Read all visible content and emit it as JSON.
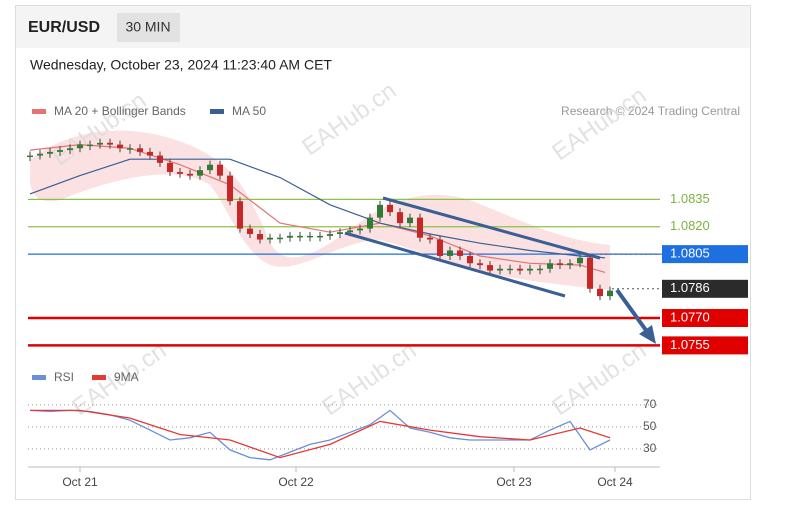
{
  "header": {
    "symbol": "EUR/USD",
    "interval": "30 MIN",
    "timestamp": "Wednesday, October 23, 2024 11:23:40 AM CET"
  },
  "watermark": "EAHub.cn",
  "chart_data": {
    "type": "candlestick",
    "credit": "Research © 2024 Trading Central",
    "xlim": [
      -0.2,
      63
    ],
    "xticks": [
      {
        "value": 5,
        "label": "Oct 21"
      },
      {
        "value": 26.6,
        "label": "Oct 22"
      },
      {
        "value": 48.4,
        "label": "Oct 23"
      },
      {
        "value": 58.5,
        "label": "Oct 24"
      }
    ],
    "ylim": [
      1.0747,
      1.0873
    ],
    "candles": {
      "up_color": "#2e7d32",
      "down_color": "#c62828",
      "x": [
        0,
        1,
        2,
        3,
        4,
        5,
        6,
        7,
        8,
        9,
        10,
        11,
        12,
        13,
        14,
        15,
        16,
        17,
        18,
        19,
        20,
        21,
        22,
        23,
        24,
        25,
        26,
        27,
        28,
        29,
        30,
        31,
        32,
        33,
        34,
        35,
        36,
        37,
        38,
        39,
        40,
        41,
        42,
        43,
        44,
        45,
        46,
        47,
        48,
        49,
        50,
        51,
        52,
        53,
        54,
        55,
        56,
        57,
        58
      ],
      "values": [
        1.0859,
        1.086,
        1.0861,
        1.0862,
        1.0863,
        1.0865,
        1.0865,
        1.0866,
        1.0865,
        1.0863,
        1.0863,
        1.0861,
        1.0859,
        1.0855,
        1.085,
        1.0849,
        1.0848,
        1.0851,
        1.0854,
        1.0848,
        1.0834,
        1.0819,
        1.0816,
        1.0813,
        1.0814,
        1.0814,
        1.0815,
        1.0815,
        1.0815,
        1.0815,
        1.0816,
        1.0817,
        1.0818,
        1.0819,
        1.0825,
        1.0832,
        1.0828,
        1.0822,
        1.0825,
        1.0814,
        1.0813,
        1.0804,
        1.0807,
        1.0804,
        1.08,
        1.0799,
        1.0796,
        1.0797,
        1.0797,
        1.0796,
        1.0797,
        1.0797,
        1.08,
        1.0799,
        1.08,
        1.0803,
        1.0786,
        1.0782,
        1.0785
      ]
    },
    "series": [
      {
        "name": "MA 20 + Bollinger Bands",
        "color": "#e57373",
        "x": [
          0,
          5,
          10,
          15,
          20,
          25,
          30,
          35,
          40,
          45,
          50,
          55,
          57.5
        ],
        "values": [
          1.0862,
          1.0865,
          1.0863,
          1.0854,
          1.0843,
          1.0822,
          1.0817,
          1.0822,
          1.0815,
          1.0804,
          1.08,
          1.0799,
          1.0795
        ]
      },
      {
        "name": "MA 50",
        "color": "#3a5f94",
        "x": [
          0,
          5,
          10,
          15,
          20,
          25,
          30,
          35,
          40,
          45,
          50,
          55,
          57.5
        ],
        "values": [
          1.0838,
          1.0848,
          1.0857,
          1.0857,
          1.0857,
          1.0847,
          1.0832,
          1.0822,
          1.0816,
          1.0811,
          1.0807,
          1.0804,
          1.0803
        ]
      }
    ],
    "levels": [
      {
        "value": 1.0835,
        "label": "1.0835",
        "color": "#8bc34a",
        "style": "text"
      },
      {
        "value": 1.082,
        "label": "1.0820",
        "color": "#8bc34a",
        "style": "text"
      },
      {
        "value": 1.0805,
        "label": "1.0805",
        "color": "#1e6fe0",
        "style": "badge"
      },
      {
        "value": 1.0786,
        "label": "1.0786",
        "color": "#2b2b2b",
        "style": "current"
      },
      {
        "value": 1.077,
        "label": "1.0770",
        "color": "#e00000",
        "style": "badge"
      },
      {
        "value": 1.0755,
        "label": "1.0755",
        "color": "#e00000",
        "style": "badge"
      }
    ],
    "rsi": {
      "ylim": [
        18,
        79
      ],
      "yticks": [
        70,
        50,
        30
      ],
      "series": [
        {
          "name": "RSI",
          "color": "#6b8fd6",
          "x": [
            0,
            2,
            4,
            6,
            8,
            10,
            12,
            14,
            16,
            18,
            20,
            22,
            24,
            26,
            28,
            30,
            32,
            34,
            36,
            38,
            40,
            42,
            44,
            46,
            48,
            50,
            52,
            54,
            56,
            58
          ],
          "values": [
            65,
            64,
            65,
            64,
            61,
            56,
            47,
            38,
            40,
            45,
            29,
            22,
            20,
            27,
            34,
            38,
            45,
            52,
            65,
            49,
            45,
            40,
            38,
            38,
            38,
            38,
            47,
            55,
            29,
            38
          ]
        },
        {
          "name": "9MA",
          "color": "#e53935",
          "x": [
            0,
            5,
            10,
            15,
            20,
            25,
            30,
            35,
            40,
            45,
            50,
            55,
            58
          ],
          "values": [
            65,
            65,
            58,
            43,
            38,
            22,
            34,
            55,
            47,
            41,
            38,
            49,
            40
          ]
        }
      ]
    }
  }
}
